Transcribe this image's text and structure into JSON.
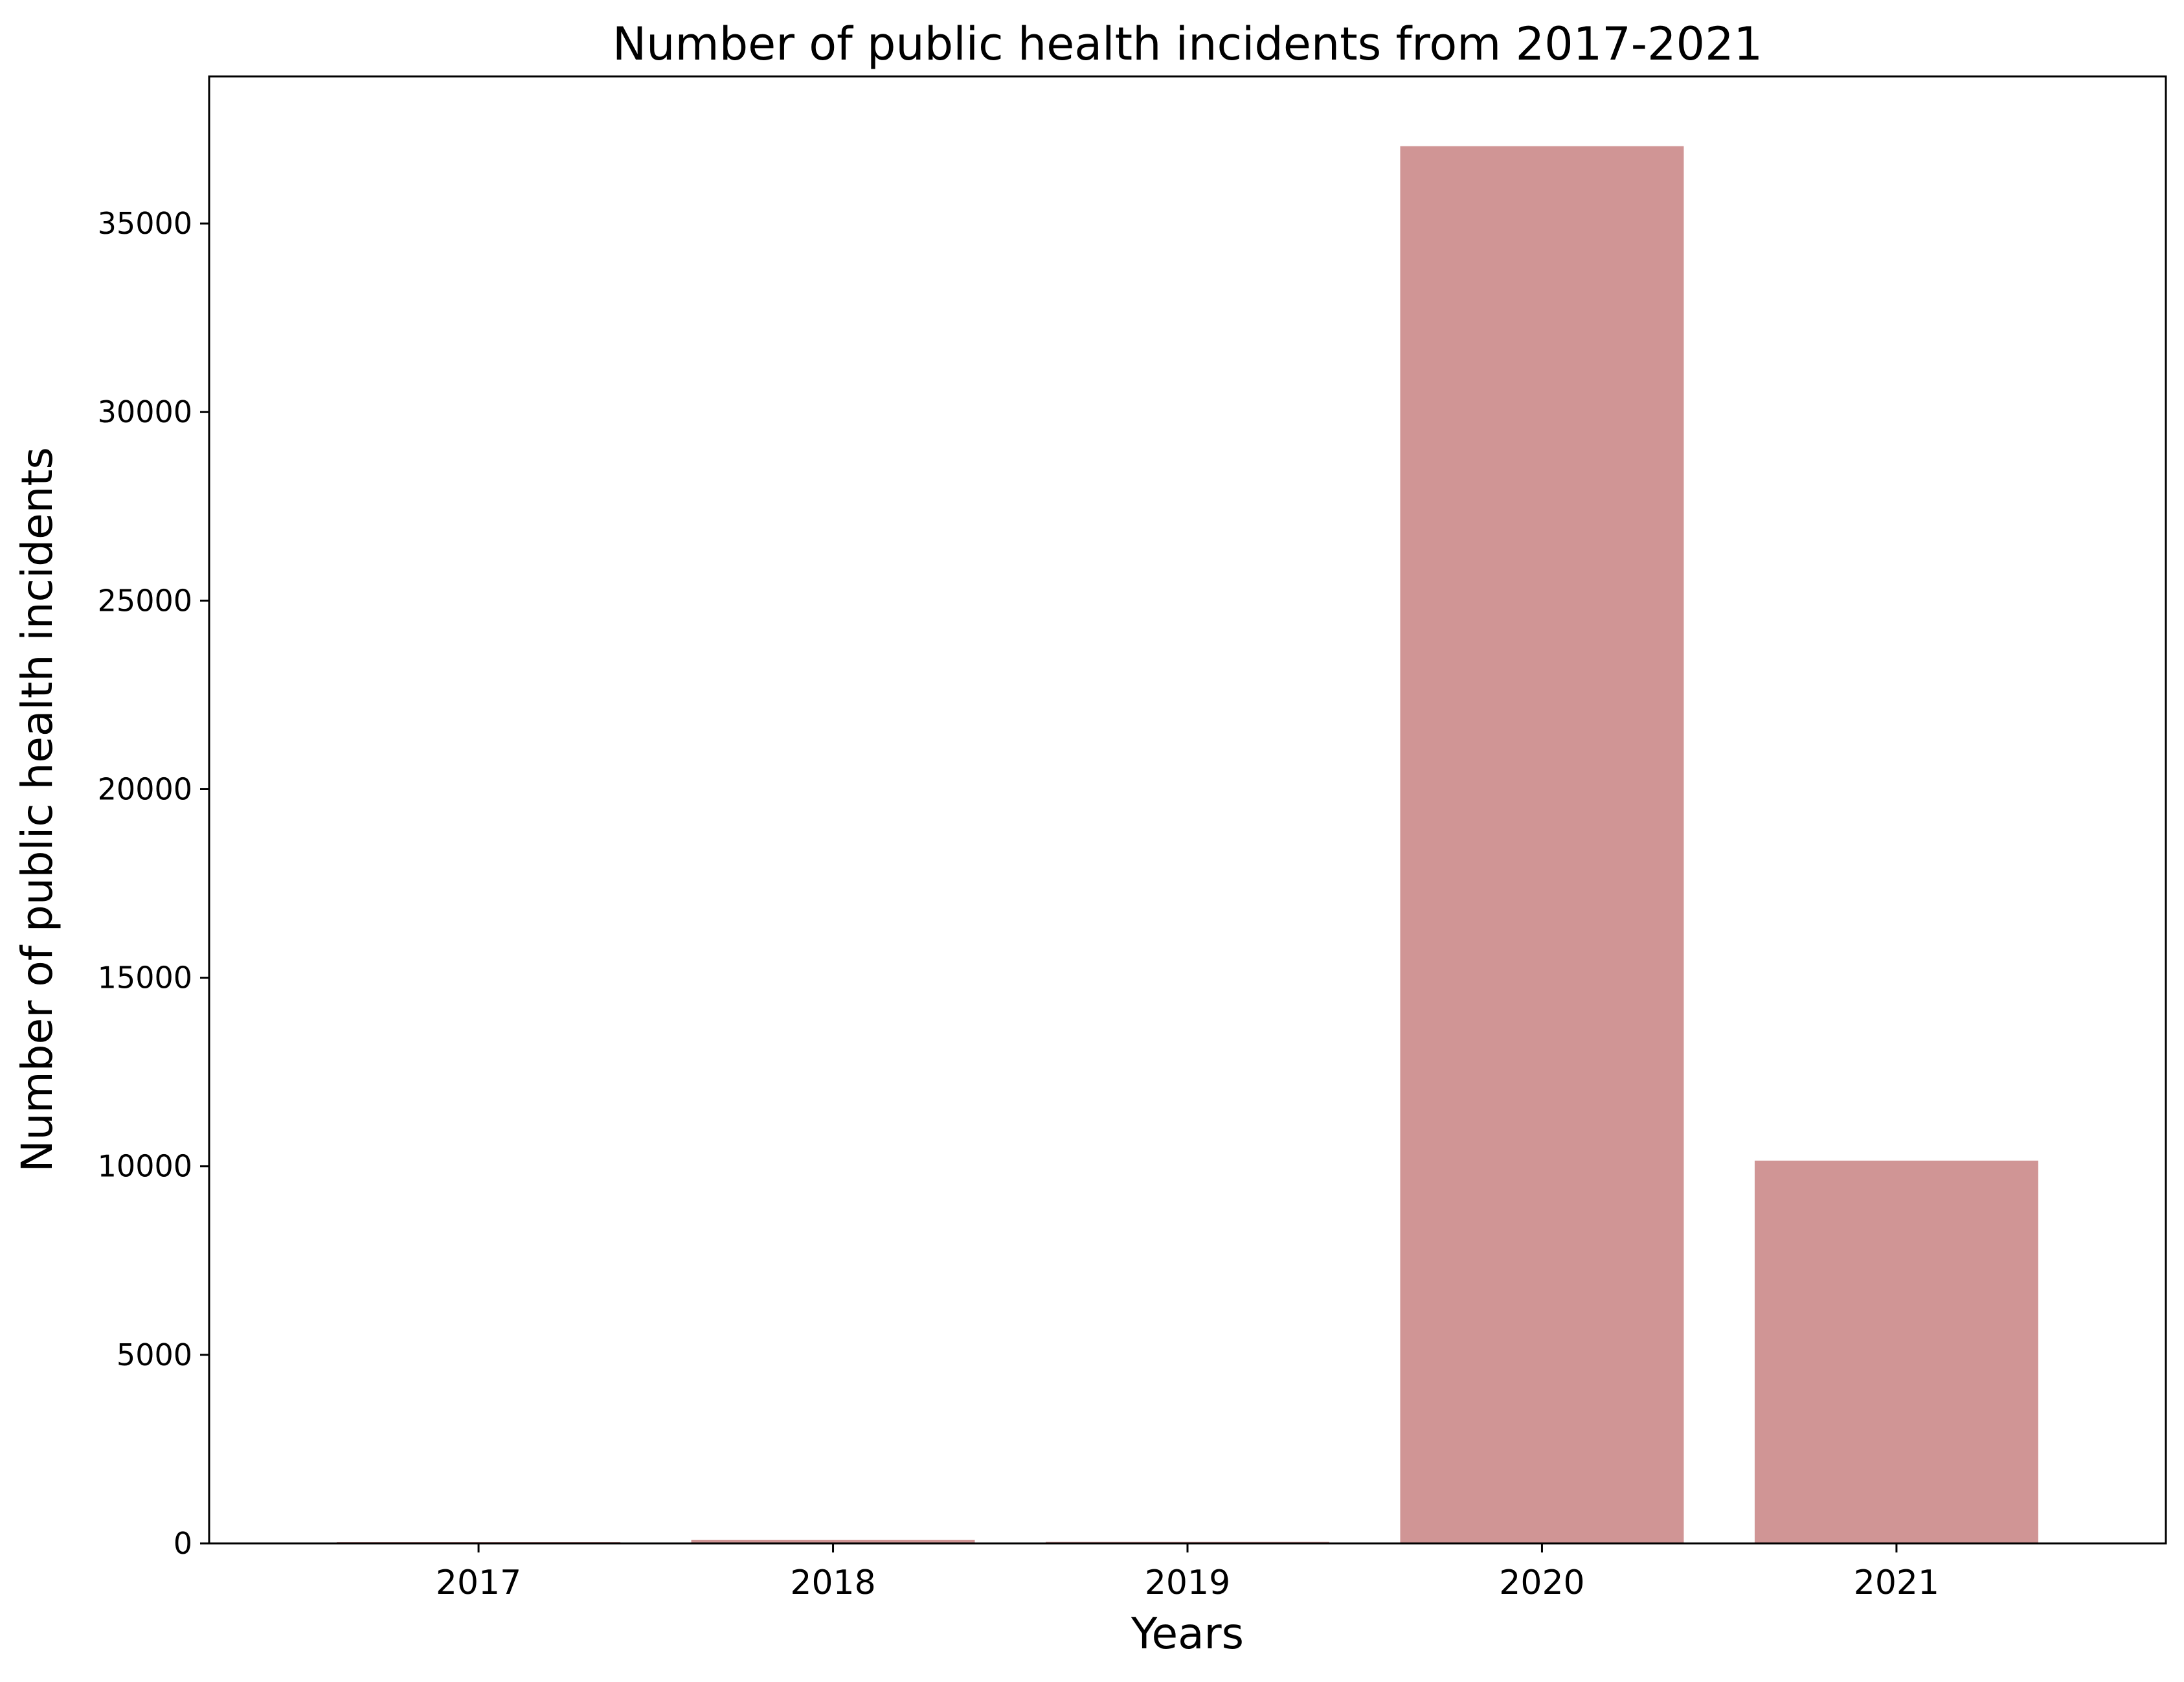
{
  "chart_data": {
    "type": "bar",
    "title": "Number of public health incidents from 2017-2021",
    "xlabel": "Years",
    "ylabel": "Number of public health incidents",
    "categories": [
      "2017",
      "2018",
      "2019",
      "2020",
      "2021"
    ],
    "values": [
      5,
      90,
      40,
      37050,
      10150
    ],
    "ylim": [
      0,
      38900
    ],
    "yticks": [
      0,
      5000,
      10000,
      15000,
      20000,
      25000,
      30000,
      35000
    ],
    "ytick_labels": [
      "0",
      "5000",
      "10000",
      "15000",
      "20000",
      "25000",
      "30000",
      "35000"
    ],
    "grid": false,
    "legend": false,
    "colors": {
      "bar": "#d09595",
      "axis": "#000000",
      "background": "#ffffff"
    }
  }
}
